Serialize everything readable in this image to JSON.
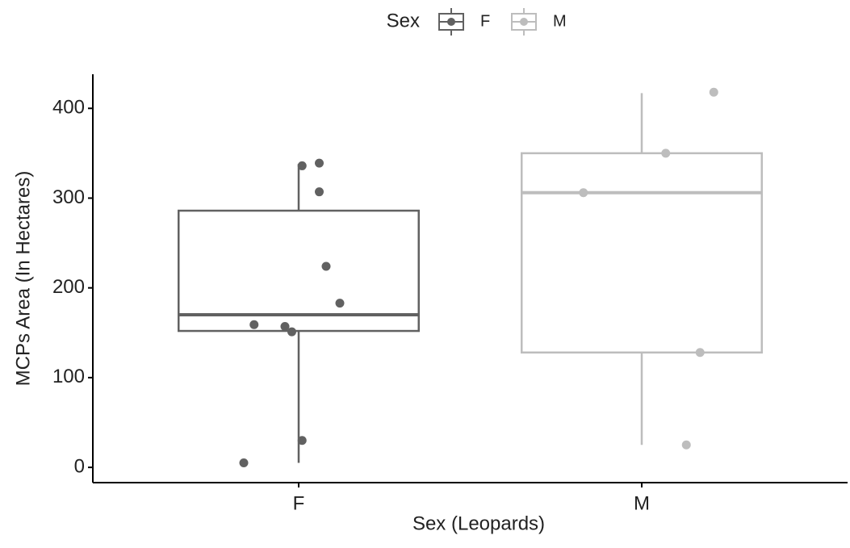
{
  "chart_data": {
    "type": "boxplot",
    "xlabel": "Sex (Leopards)",
    "ylabel": "MCPs Area (In Hectares)",
    "legend_title": "Sex",
    "legend_position": "top",
    "categories": [
      "F",
      "M"
    ],
    "ylim": [
      -17,
      438
    ],
    "yticks": [
      0,
      100,
      200,
      300,
      400
    ],
    "series": [
      {
        "name": "F",
        "color": "#616161",
        "box": {
          "whislo": 5,
          "q1": 152,
          "med": 170,
          "q3": 286,
          "whishi": 338
        },
        "points": [
          5,
          159,
          157,
          151,
          30,
          336,
          339,
          307,
          224,
          183
        ]
      },
      {
        "name": "M",
        "color": "#bdbdbd",
        "box": {
          "whislo": 25,
          "q1": 128,
          "med": 306,
          "q3": 350,
          "whishi": 417
        },
        "points": [
          306,
          350,
          418,
          128,
          25
        ]
      }
    ]
  }
}
